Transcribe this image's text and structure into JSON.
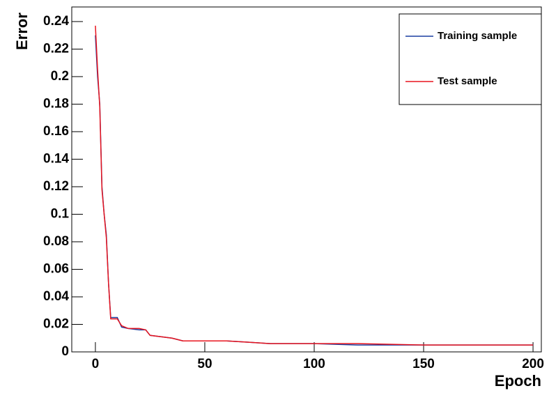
{
  "chart_data": {
    "type": "line",
    "x_label": "Epoch",
    "y_label": "Error",
    "xlim": [
      -10.8,
      203.8
    ],
    "xticks": [
      0,
      50,
      100,
      150,
      200
    ],
    "ylim": [
      0,
      0.2506
    ],
    "yticks": [
      0,
      0.02,
      0.04,
      0.06,
      0.08,
      0.1,
      0.12,
      0.14,
      0.16,
      0.18,
      0.2,
      0.22,
      0.24
    ],
    "legend": "top-right",
    "x": [
      0,
      1,
      2,
      3,
      4,
      5,
      6,
      7,
      10,
      12,
      15,
      20,
      23,
      25,
      30,
      35,
      40,
      50,
      60,
      70,
      80,
      100,
      120,
      150,
      200
    ],
    "series": [
      {
        "name": "Training sample",
        "color": "#1a3fa0",
        "values": [
          0.23,
          0.2,
          0.18,
          0.12,
          0.1,
          0.085,
          0.05,
          0.025,
          0.025,
          0.018,
          0.017,
          0.016,
          0.016,
          0.012,
          0.011,
          0.01,
          0.008,
          0.008,
          0.008,
          0.007,
          0.006,
          0.006,
          0.005,
          0.005,
          0.005
        ]
      },
      {
        "name": "Test sample",
        "color": "#e8141e",
        "values": [
          0.237,
          0.205,
          0.178,
          0.118,
          0.1,
          0.083,
          0.05,
          0.024,
          0.024,
          0.019,
          0.017,
          0.017,
          0.016,
          0.012,
          0.011,
          0.01,
          0.008,
          0.008,
          0.008,
          0.007,
          0.006,
          0.006,
          0.006,
          0.005,
          0.005
        ]
      }
    ]
  }
}
